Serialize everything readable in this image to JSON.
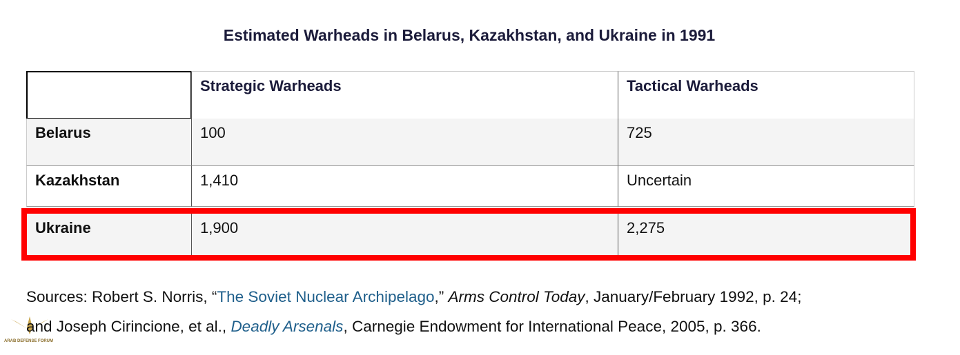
{
  "title": "Estimated Warheads in Belarus, Kazakhstan, and Ukraine in 1991",
  "table": {
    "header": [
      "",
      "Strategic Warheads",
      "Tactical Warheads"
    ],
    "rows": [
      [
        "Belarus",
        "100",
        "725"
      ],
      [
        "Kazakhstan",
        "1,410",
        "Uncertain"
      ],
      [
        "Ukraine",
        "1,900",
        "2,275"
      ]
    ]
  },
  "sources": {
    "line1": [
      "Sources: Robert S. Norris, “",
      "The Soviet Nuclear Archipelago",
      ",” ",
      "Arms Control Today",
      ", January/February 1992, p. 24;"
    ],
    "line2": [
      "and Joseph Cirincione, et al., ",
      "Deadly Arsenals",
      ", Carnegie Endowment for International Peace, 2005, p. 366."
    ]
  },
  "watermark": "ARAB DEFENSE FORUM"
}
